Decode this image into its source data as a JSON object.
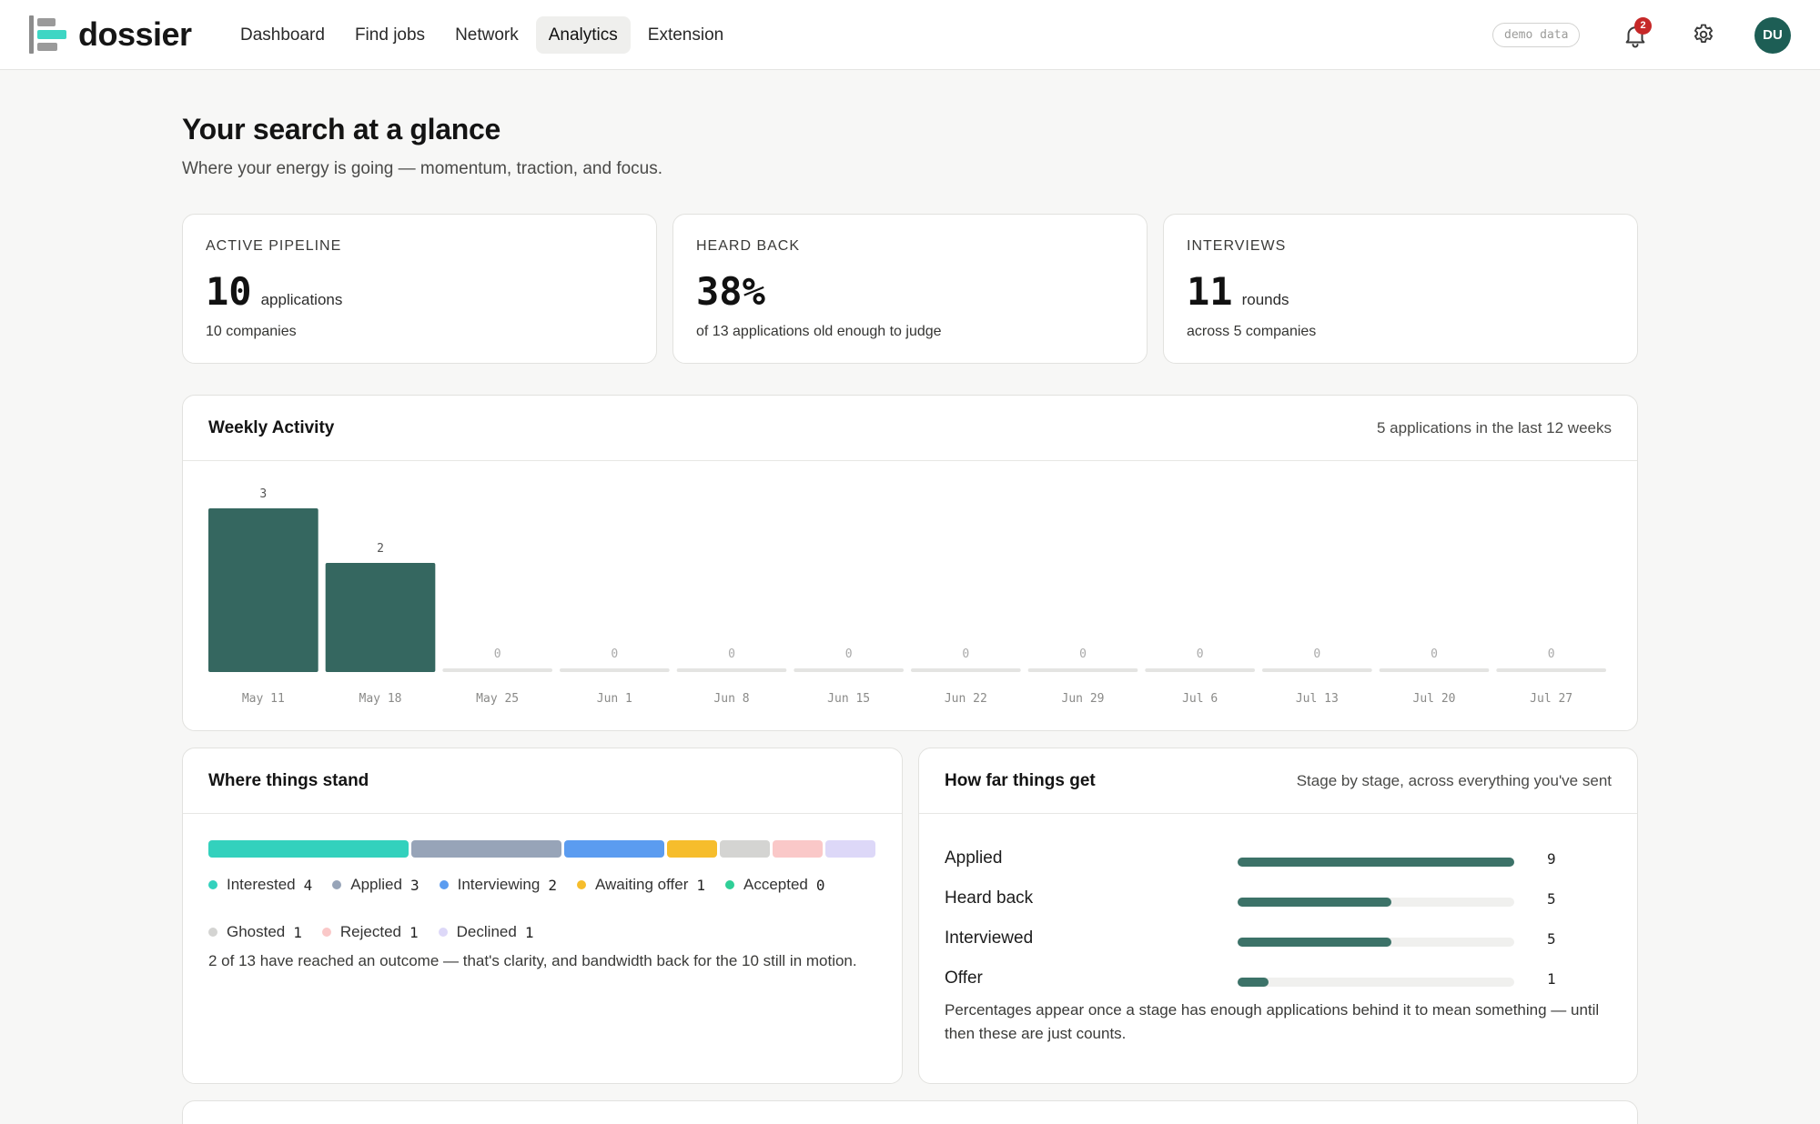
{
  "app": {
    "name": "dossier"
  },
  "nav": {
    "items": [
      {
        "label": "Dashboard",
        "active": false
      },
      {
        "label": "Find jobs",
        "active": false
      },
      {
        "label": "Network",
        "active": false
      },
      {
        "label": "Analytics",
        "active": true
      },
      {
        "label": "Extension",
        "active": false
      }
    ]
  },
  "header": {
    "demo_badge": "demo data",
    "notifications_count": "2",
    "avatar_initials": "DU"
  },
  "page": {
    "title": "Your search at a glance",
    "subtitle": "Where your energy is going — momentum, traction, and focus."
  },
  "stats": [
    {
      "label": "ACTIVE PIPELINE",
      "value": "10",
      "unit": "applications",
      "note": "10 companies"
    },
    {
      "label": "HEARD BACK",
      "value": "38%",
      "unit": "",
      "note": "of 13 applications old enough to judge"
    },
    {
      "label": "INTERVIEWS",
      "value": "11",
      "unit": "rounds",
      "note": "across 5 companies"
    }
  ],
  "weekly": {
    "title": "Weekly Activity",
    "meta": "5 applications in the last 12 weeks"
  },
  "chart_data": {
    "type": "bar",
    "categories": [
      "May 11",
      "May 18",
      "May 25",
      "Jun 1",
      "Jun 8",
      "Jun 15",
      "Jun 22",
      "Jun 29",
      "Jul 6",
      "Jul 13",
      "Jul 20",
      "Jul 27"
    ],
    "values": [
      3,
      2,
      0,
      0,
      0,
      0,
      0,
      0,
      0,
      0,
      0,
      0
    ],
    "ylim": [
      0,
      3
    ],
    "grid": false,
    "bar_color": "#356760",
    "zero_color": "#e4e4e2"
  },
  "stand": {
    "title": "Where things stand",
    "segments": [
      {
        "name": "Interested",
        "count": "4",
        "color": "#33d1bd"
      },
      {
        "name": "Applied",
        "count": "3",
        "color": "#97a4b8"
      },
      {
        "name": "Interviewing",
        "count": "2",
        "color": "#5b9cf0"
      },
      {
        "name": "Awaiting offer",
        "count": "1",
        "color": "#f6bd2c"
      },
      {
        "name": "Accepted",
        "count": "0",
        "color": "#2fcf97"
      },
      {
        "name": "Ghosted",
        "count": "1",
        "color": "#d4d4d2"
      },
      {
        "name": "Rejected",
        "count": "1",
        "color": "#fac8c8"
      },
      {
        "name": "Declined",
        "count": "1",
        "color": "#ddd8f8"
      }
    ],
    "note": "2 of 13 have reached an outcome — that's clarity, and bandwidth back for the 10 still in motion."
  },
  "far": {
    "title": "How far things get",
    "meta": "Stage by stage, across everything you've sent",
    "stages": [
      {
        "label": "Applied",
        "count": "9",
        "fraction": 1.0
      },
      {
        "label": "Heard back",
        "count": "5",
        "fraction": 0.555
      },
      {
        "label": "Interviewed",
        "count": "5",
        "fraction": 0.555
      },
      {
        "label": "Offer",
        "count": "1",
        "fraction": 0.111
      }
    ],
    "note": "Percentages appear once a stage has enough applications behind it to mean something — until then these are just counts."
  }
}
